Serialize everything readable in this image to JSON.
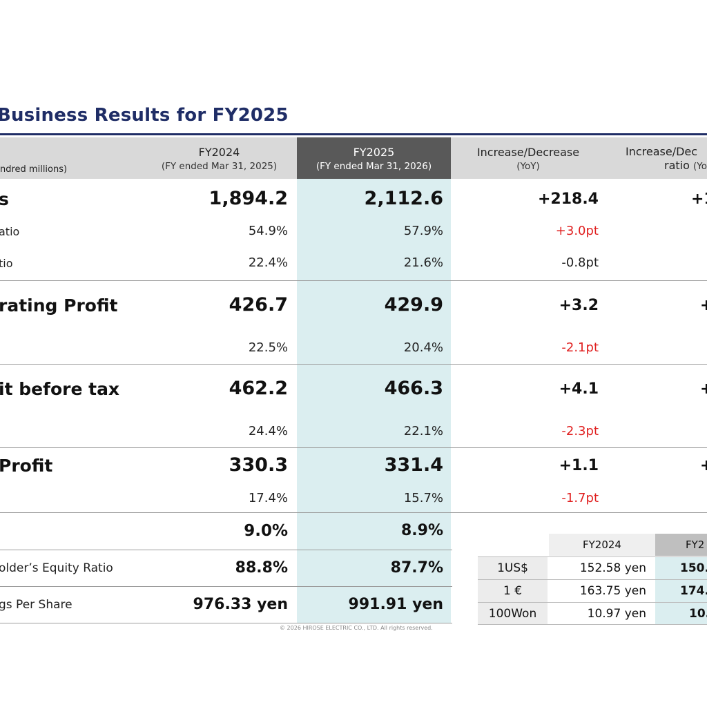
{
  "title": "Business Results for FY2025",
  "header": {
    "unit_label": "ndred millions)",
    "col1_title": "FY2024",
    "col1_sub": "(FY ended Mar 31, 2025)",
    "col2_title": "FY2025",
    "col2_sub": "(FY ended Mar 31, 2026)",
    "col3_title": "Increase/Decrease",
    "col3_sub": "(YoY)",
    "col4_title": "Increase/Dec",
    "col4_sub_a": "ratio",
    "col4_sub_b": "(YoY"
  },
  "rows": {
    "sales": {
      "label": "s",
      "fy24": "1,894.2",
      "fy25": "2,112.6",
      "diff": "+218.4",
      "ratio": "+1"
    },
    "ratio_a": {
      "label": "atio",
      "fy24": "54.9%",
      "fy25": "57.9%",
      "diff": "+3.0pt"
    },
    "ratio_b": {
      "label": "tio",
      "fy24": "22.4%",
      "fy25": "21.6%",
      "diff": "-0.8pt"
    },
    "op": {
      "label": "rating Profit",
      "fy24": "426.7",
      "fy25": "429.9",
      "diff": "+3.2",
      "ratio": "+"
    },
    "op_margin": {
      "fy24": "22.5%",
      "fy25": "20.4%",
      "diff": "-2.1pt"
    },
    "pbt": {
      "label": "it before tax",
      "fy24": "462.2",
      "fy25": "466.3",
      "diff": "+4.1",
      "ratio": "+"
    },
    "pbt_margin": {
      "fy24": "24.4%",
      "fy25": "22.1%",
      "diff": "-2.3pt"
    },
    "np": {
      "label": "Profit",
      "fy24": "330.3",
      "fy25": "331.4",
      "diff": "+1.1",
      "ratio": "+"
    },
    "np_margin": {
      "fy24": "17.4%",
      "fy25": "15.7%",
      "diff": "-1.7pt"
    },
    "roe": {
      "fy24": "9.0%",
      "fy25": "8.9%"
    },
    "equity": {
      "label": "older’s Equity Ratio",
      "fy24": "88.8%",
      "fy25": "87.7%"
    },
    "eps": {
      "label": "gs Per Share",
      "fy24": "976.33 yen",
      "fy25": "991.91 yen"
    }
  },
  "fx_table": {
    "col1": "FY2024",
    "col2": "FY2",
    "rows": [
      {
        "label": "1US$",
        "fy24": "152.58 yen",
        "fy25": "150."
      },
      {
        "label": "1 €",
        "fy24": "163.75 yen",
        "fy25": "174."
      },
      {
        "label": "100Won",
        "fy24": "10.97 yen",
        "fy25": "10."
      }
    ]
  },
  "copyright": "© 2026 HIROSE ELECTRIC CO., LTD. All rights reserved.",
  "colors": {
    "title": "#1f2d66",
    "highlight": "#dbeef0",
    "header_dark": "#595959",
    "negative": "#e02020"
  }
}
